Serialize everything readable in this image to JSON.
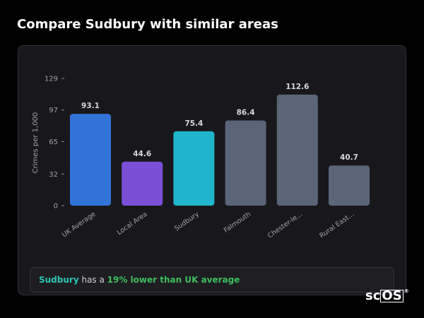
{
  "page": {
    "title": "Compare Sudbury with similar areas"
  },
  "summary": {
    "area_name": "Sudbury",
    "middle_text": " has a ",
    "difference_text": "19% lower than UK average"
  },
  "logo": {
    "prefix": "sc",
    "boxed": "OS",
    "reg": "®"
  },
  "chart_data": {
    "type": "bar",
    "ylabel": "Crimes per 1,000",
    "xlabel": "",
    "ylim": [
      0,
      129
    ],
    "yticks": [
      0,
      32,
      65,
      97,
      129
    ],
    "categories": [
      "UK Average",
      "Local Area",
      "Sudbury",
      "Falmouth",
      "Chester-le...",
      "Rural East..."
    ],
    "values": [
      93.1,
      44.6,
      75.4,
      86.4,
      112.6,
      40.7
    ],
    "value_labels": [
      "93.1",
      "44.6",
      "75.4",
      "86.4",
      "112.6",
      "40.7"
    ],
    "colors": [
      "#3273d8",
      "#7a4fd6",
      "#1fb5cc",
      "#5a6578",
      "#5a6578",
      "#5a6578"
    ],
    "grid": false,
    "legend": "none"
  }
}
